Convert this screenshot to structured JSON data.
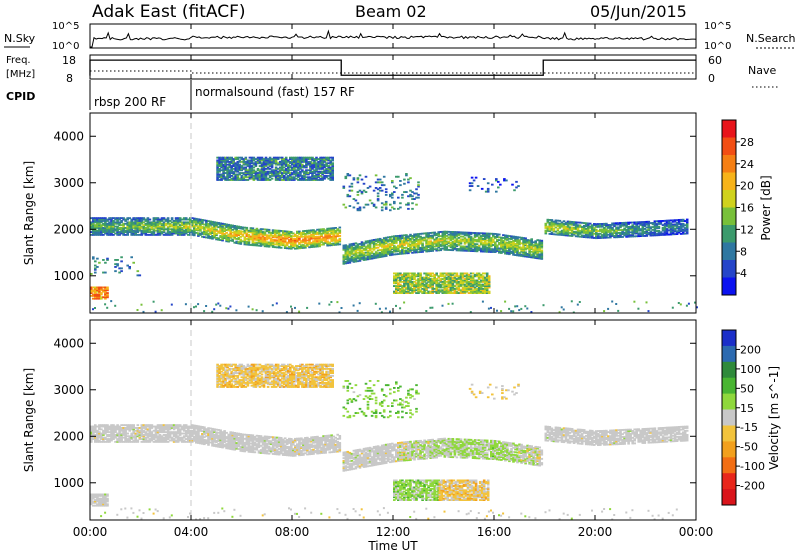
{
  "header": {
    "site": "Adak East (fitACF)",
    "beam": "Beam 02",
    "date": "05/Jun/2015"
  },
  "noise_panel": {
    "left_label": "N.Sky",
    "right_label": "N.Search",
    "left_ticks": [
      "10^5",
      "10^0"
    ],
    "right_ticks": [
      "10^5",
      "10^0"
    ]
  },
  "freq_panel": {
    "left_label_1": "Freq.",
    "left_label_2": "[MHz]",
    "right_label": "Nave",
    "left_ticks": [
      "18",
      "8"
    ],
    "right_ticks": [
      "60",
      "0"
    ]
  },
  "cpid_panel": {
    "label": "CPID",
    "segments": [
      {
        "start": 0,
        "end": 4,
        "text": "rbsp 200 RF"
      },
      {
        "start": 4,
        "end": 24,
        "text": "normalsound (fast) 157 RF"
      }
    ]
  },
  "x_axis": {
    "label": "Time UT",
    "ticks": [
      "00:00",
      "04:00",
      "08:00",
      "12:00",
      "16:00",
      "20:00",
      "00:00"
    ],
    "tick_hours": [
      0,
      4,
      8,
      12,
      16,
      20,
      24
    ]
  },
  "colorbars": {
    "power": {
      "label": "Power [dB]",
      "ticks": [
        "28",
        "24",
        "20",
        "16",
        "12",
        "8",
        "4"
      ],
      "colors": [
        "#e8141b",
        "#f24e14",
        "#f57f14",
        "#f7b31a",
        "#cfd21d",
        "#78c03a",
        "#3b9a6c",
        "#2f77a1",
        "#2545c9",
        "#0b12f0"
      ]
    },
    "velocity": {
      "label": "Velocity [m s^-1]",
      "ticks": [
        "200",
        "100",
        "50",
        "15",
        "-15",
        "-50",
        "-100",
        "-200"
      ],
      "colors": [
        "#1b2fc9",
        "#2c6ab0",
        "#2f8a3b",
        "#49b532",
        "#8fd83c",
        "#c8c8c8",
        "#f2c33c",
        "#f2a01d",
        "#f26e14",
        "#e8261b",
        "#d9141b"
      ]
    }
  },
  "chart_data": [
    {
      "type": "heatmap",
      "title": "Power",
      "xlabel": "",
      "ylabel": "Slant Range [km]",
      "xlim": [
        0,
        24
      ],
      "ylim": [
        200,
        4500
      ],
      "yticks": [
        1000,
        2000,
        3000,
        4000
      ],
      "clim": [
        0,
        30
      ],
      "regions": [
        {
          "kind": "band",
          "t": [
            0.0,
            4.0,
            6.0,
            8.0,
            9.9
          ],
          "r": [
            2050,
            2050,
            1850,
            1750,
            1850
          ],
          "half": 180,
          "p": [
            12,
            16,
            20,
            24,
            22
          ]
        },
        {
          "kind": "band",
          "t": [
            10.0,
            12.0,
            14.0,
            16.0,
            17.9
          ],
          "r": [
            1450,
            1650,
            1750,
            1700,
            1550
          ],
          "half": 200,
          "p": [
            16,
            18,
            16,
            16,
            16
          ]
        },
        {
          "kind": "band",
          "t": [
            18.0,
            20.0,
            22.0,
            23.6
          ],
          "r": [
            2050,
            1950,
            2000,
            2050
          ],
          "half": 150,
          "p": [
            18,
            14,
            10,
            8
          ]
        },
        {
          "kind": "blob",
          "t": [
            5.0,
            9.6
          ],
          "r": [
            3050,
            3550
          ],
          "p": 8
        },
        {
          "kind": "blob",
          "t": [
            12.0,
            15.8
          ],
          "r": [
            620,
            1050
          ],
          "p": 14
        },
        {
          "kind": "blob",
          "t": [
            0.0,
            0.7
          ],
          "r": [
            500,
            750
          ],
          "p": 22
        },
        {
          "kind": "speckle",
          "t": [
            10.0,
            13.0
          ],
          "r": [
            2400,
            3200
          ],
          "p": 8
        },
        {
          "kind": "speckle",
          "t": [
            15.0,
            17.0
          ],
          "r": [
            2800,
            3100
          ],
          "p": 6
        },
        {
          "kind": "speckle",
          "t": [
            0.0,
            2.0
          ],
          "r": [
            1000,
            1400
          ],
          "p": 8
        }
      ]
    },
    {
      "type": "heatmap",
      "title": "Velocity",
      "xlabel": "Time UT",
      "ylabel": "Slant Range [km]",
      "xlim": [
        0,
        24
      ],
      "ylim": [
        200,
        4500
      ],
      "yticks": [
        1000,
        2000,
        3000,
        4000
      ],
      "clim": [
        -250,
        250
      ],
      "regions": [
        {
          "kind": "band",
          "t": [
            0.0,
            4.0,
            6.0,
            8.0,
            9.9
          ],
          "r": [
            2050,
            2050,
            1850,
            1750,
            1850
          ],
          "half": 180,
          "v": [
            0,
            0,
            0,
            0,
            0
          ]
        },
        {
          "kind": "band",
          "t": [
            10.0,
            12.0,
            14.0,
            16.0,
            17.9
          ],
          "r": [
            1450,
            1650,
            1750,
            1700,
            1550
          ],
          "half": 200,
          "v": [
            0,
            0,
            20,
            30,
            0
          ]
        },
        {
          "kind": "band",
          "t": [
            18.0,
            20.0,
            22.0,
            23.6
          ],
          "r": [
            2050,
            1950,
            2000,
            2050
          ],
          "half": 150,
          "v": [
            0,
            0,
            0,
            0
          ]
        },
        {
          "kind": "blob",
          "t": [
            5.0,
            9.6
          ],
          "r": [
            3050,
            3550
          ],
          "v": -40
        },
        {
          "kind": "blob",
          "t": [
            12.0,
            13.8
          ],
          "r": [
            620,
            1050
          ],
          "v": 40
        },
        {
          "kind": "blob",
          "t": [
            13.8,
            15.8
          ],
          "r": [
            620,
            1050
          ],
          "v": -40
        },
        {
          "kind": "blob",
          "t": [
            0.0,
            0.7
          ],
          "r": [
            500,
            750
          ],
          "v": 0
        },
        {
          "kind": "speckle",
          "t": [
            10.0,
            13.0
          ],
          "r": [
            2400,
            3200
          ],
          "v": 60
        },
        {
          "kind": "speckle",
          "t": [
            15.0,
            17.0
          ],
          "r": [
            2800,
            3100
          ],
          "v": -30
        }
      ]
    }
  ]
}
